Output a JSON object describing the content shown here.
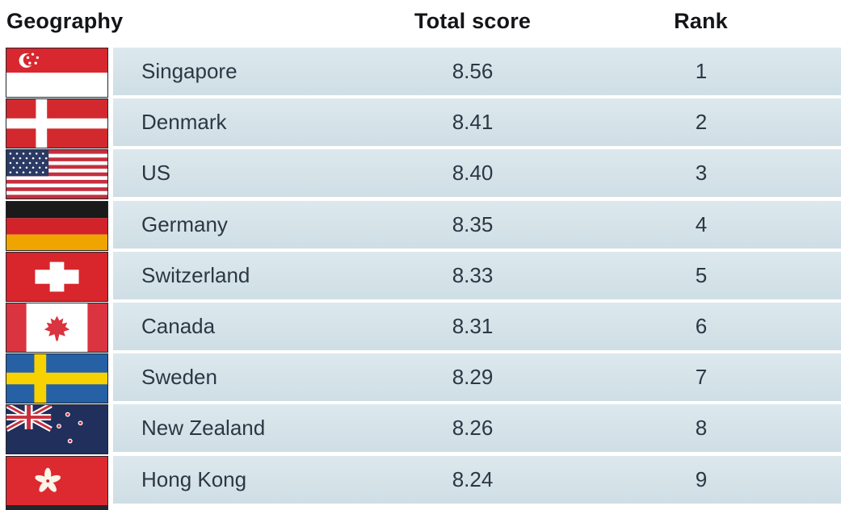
{
  "header": {
    "geography": "Geography",
    "total_score": "Total score",
    "rank": "Rank"
  },
  "rows": [
    {
      "country": "Singapore",
      "score": "8.56",
      "rank": "1",
      "flag": "singapore"
    },
    {
      "country": "Denmark",
      "score": "8.41",
      "rank": "2",
      "flag": "denmark"
    },
    {
      "country": "US",
      "score": "8.40",
      "rank": "3",
      "flag": "us"
    },
    {
      "country": "Germany",
      "score": "8.35",
      "rank": "4",
      "flag": "germany"
    },
    {
      "country": "Switzerland",
      "score": "8.33",
      "rank": "5",
      "flag": "switzerland"
    },
    {
      "country": "Canada",
      "score": "8.31",
      "rank": "6",
      "flag": "canada"
    },
    {
      "country": "Sweden",
      "score": "8.29",
      "rank": "7",
      "flag": "sweden"
    },
    {
      "country": "New Zealand",
      "score": "8.26",
      "rank": "8",
      "flag": "new-zealand"
    },
    {
      "country": "Hong Kong",
      "score": "8.24",
      "rank": "9",
      "flag": "hong-kong"
    }
  ],
  "colors": {
    "row_band": "#d5e3e9",
    "header_text": "#141519",
    "cell_text": "#2c3744"
  },
  "chart_data": {
    "type": "table",
    "columns": [
      "Geography",
      "Total score",
      "Rank"
    ],
    "rows": [
      [
        "Singapore",
        8.56,
        1
      ],
      [
        "Denmark",
        8.41,
        2
      ],
      [
        "US",
        8.4,
        3
      ],
      [
        "Germany",
        8.35,
        4
      ],
      [
        "Switzerland",
        8.33,
        5
      ],
      [
        "Canada",
        8.31,
        6
      ],
      [
        "Sweden",
        8.29,
        7
      ],
      [
        "New Zealand",
        8.26,
        8
      ],
      [
        "Hong Kong",
        8.24,
        9
      ]
    ],
    "title": "",
    "notes": "ranking table with country flags; partial next row visible at bottom edge"
  }
}
